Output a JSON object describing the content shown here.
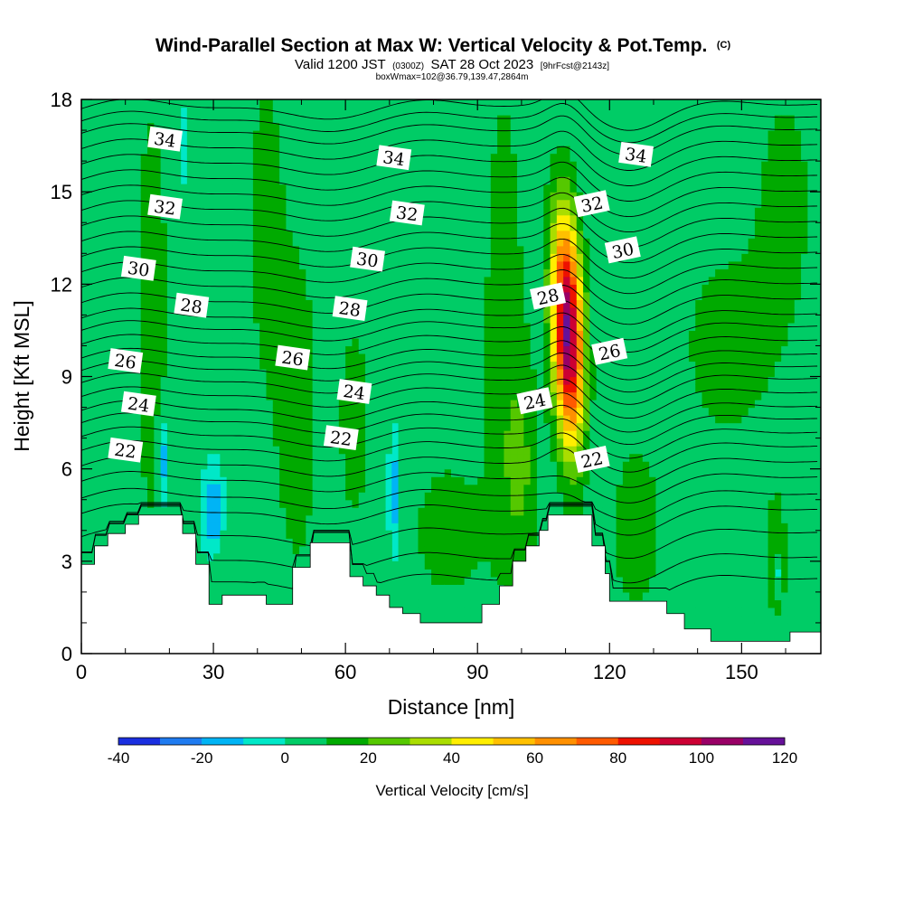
{
  "header": {
    "title": "Wind-Parallel Section at Max W: Vertical Velocity & Pot.Temp.",
    "title_mark": "(C)",
    "subtitle_a": "Valid 1200 JST",
    "subtitle_b": "(0300Z)",
    "subtitle_c": "SAT 28 Oct 2023",
    "subtitle_d": "[9hrFcst@2143z]",
    "subtitle_e": "boxWmax=102@36.79,139.47,2864m"
  },
  "chart_data": {
    "type": "heatmap",
    "xlabel": "Distance [nm]",
    "ylabel": "Height [Kft MSL]",
    "xlim": [
      0,
      168
    ],
    "ylim": [
      0,
      18
    ],
    "x_ticks": [
      "0",
      "30",
      "60",
      "90",
      "120",
      "150"
    ],
    "x_tick_values": [
      0,
      30,
      60,
      90,
      120,
      150
    ],
    "y_ticks": [
      "0",
      "3",
      "6",
      "9",
      "12",
      "15",
      "18"
    ],
    "y_tick_values": [
      0,
      3,
      6,
      9,
      12,
      15,
      18
    ],
    "colorbar": {
      "title": "Vertical Velocity [cm/s]",
      "tick_labels": [
        "-40",
        "-20",
        "0",
        "20",
        "40",
        "60",
        "80",
        "100",
        "120"
      ],
      "tick_values": [
        -40,
        -20,
        0,
        20,
        40,
        60,
        80,
        100,
        120
      ],
      "level_edges": [
        -40,
        -30,
        -20,
        -10,
        0,
        10,
        20,
        30,
        40,
        50,
        60,
        70,
        80,
        90,
        100,
        110,
        120
      ],
      "colors": [
        "#1a2fe0",
        "#1f7bf0",
        "#00b4f5",
        "#00e8c8",
        "#00cc66",
        "#00aa00",
        "#55c800",
        "#aadd00",
        "#ffee00",
        "#ffc000",
        "#ff9000",
        "#ff5a00",
        "#ee1100",
        "#cc0033",
        "#990066",
        "#661199"
      ]
    },
    "terrain": [
      [
        0,
        2.9
      ],
      [
        3,
        3.5
      ],
      [
        6,
        3.9
      ],
      [
        10,
        4.2
      ],
      [
        13,
        4.5
      ],
      [
        22,
        4.5
      ],
      [
        23,
        3.9
      ],
      [
        26,
        2.9
      ],
      [
        29,
        1.6
      ],
      [
        32,
        1.9
      ],
      [
        41,
        1.9
      ],
      [
        42,
        1.6
      ],
      [
        48,
        2.8
      ],
      [
        52,
        3.6
      ],
      [
        60,
        3.6
      ],
      [
        61,
        2.5
      ],
      [
        64,
        2.2
      ],
      [
        67,
        1.9
      ],
      [
        70,
        1.5
      ],
      [
        73,
        1.3
      ],
      [
        77,
        1.0
      ],
      [
        87,
        1.0
      ],
      [
        91,
        1.6
      ],
      [
        95,
        2.2
      ],
      [
        98,
        3.0
      ],
      [
        101,
        3.5
      ],
      [
        104,
        4.0
      ],
      [
        106,
        4.5
      ],
      [
        113,
        4.5
      ],
      [
        116,
        3.5
      ],
      [
        119,
        2.6
      ],
      [
        120,
        1.7
      ],
      [
        130,
        1.7
      ],
      [
        133,
        1.3
      ],
      [
        137,
        0.8
      ],
      [
        143,
        0.4
      ],
      [
        158,
        0.4
      ],
      [
        161,
        0.7
      ],
      [
        168,
        0.7
      ]
    ],
    "wmax_core": {
      "x": 110.5,
      "y": 10.5,
      "peak_cm_s": 102
    },
    "theta_contours": [
      {
        "label": "22",
        "base": 5.05,
        "pos": [
          [
            10,
            6.6
          ],
          [
            59,
            7.0
          ],
          [
            116,
            6.3
          ]
        ]
      },
      {
        "label": "24",
        "base": 6.6,
        "pos": [
          [
            13,
            8.1
          ],
          [
            62,
            8.5
          ],
          [
            103,
            8.2
          ]
        ]
      },
      {
        "label": "26",
        "base": 7.9,
        "pos": [
          [
            10,
            9.5
          ],
          [
            48,
            9.6
          ],
          [
            120,
            9.8
          ]
        ]
      },
      {
        "label": "28",
        "base": 9.6,
        "pos": [
          [
            25,
            11.3
          ],
          [
            61,
            11.2
          ],
          [
            106,
            11.6
          ]
        ]
      },
      {
        "label": "30",
        "base": 10.9,
        "pos": [
          [
            13,
            12.5
          ],
          [
            65,
            12.8
          ],
          [
            123,
            13.1
          ]
        ]
      },
      {
        "label": "32",
        "base": 12.9,
        "pos": [
          [
            19,
            14.5
          ],
          [
            74,
            14.3
          ],
          [
            116,
            14.6
          ]
        ]
      },
      {
        "label": "34",
        "base": 14.9,
        "pos": [
          [
            19,
            16.7
          ],
          [
            71,
            16.1
          ],
          [
            126,
            16.2
          ]
        ]
      }
    ]
  }
}
